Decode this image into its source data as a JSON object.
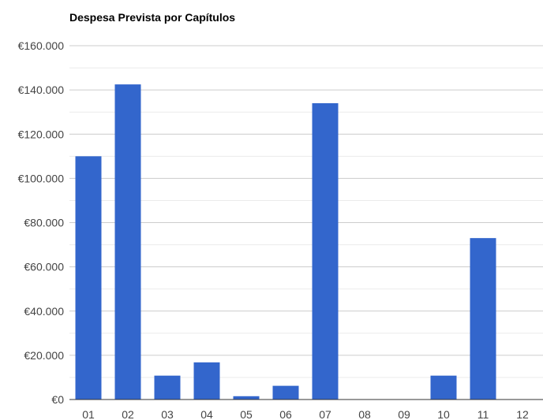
{
  "chart_data": {
    "type": "bar",
    "title": "Despesa Prevista por Capítulos",
    "xlabel": "",
    "ylabel": "",
    "categories": [
      "01",
      "02",
      "03",
      "04",
      "05",
      "06",
      "07",
      "08",
      "09",
      "10",
      "11",
      "12"
    ],
    "values": [
      110000,
      142500,
      10800,
      16800,
      1500,
      6200,
      134000,
      0,
      0,
      10800,
      73000,
      0
    ],
    "ylim": [
      0,
      160000
    ],
    "yticks": [
      0,
      20000,
      40000,
      60000,
      80000,
      100000,
      120000,
      140000,
      160000
    ],
    "ytick_labels": [
      "€0",
      "€20.000",
      "€40.000",
      "€60.000",
      "€80.000",
      "€100.000",
      "€120.000",
      "€140.000",
      "€160.000"
    ],
    "grid": true,
    "legend": "none",
    "colors": {
      "bar": "#3366cc",
      "gridline_major": "#cccccc",
      "gridline_minor": "#ebebeb",
      "axis_baseline": "#333333",
      "tick_text": "#444444",
      "title_text": "#000000"
    }
  }
}
